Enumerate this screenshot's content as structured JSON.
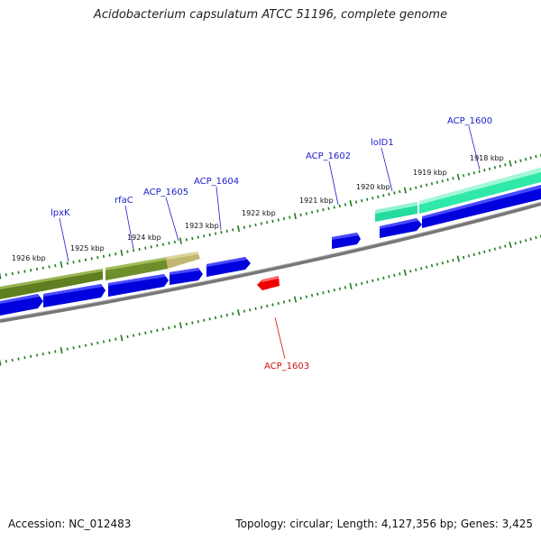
{
  "title": "Acidobacterium capsulatum ATCC 51196, complete genome",
  "footer": {
    "accession": "Accession: NC_012483",
    "stats": "Topology: circular; Length: 4,127,356 bp; Genes: 3,425"
  },
  "colors": {
    "forward_cds": "#0000ee",
    "reverse_cds": "#ee0000",
    "backbone": "#7a7a7a",
    "ticks": "#1a7a1a",
    "feature_olive": "#6b8a2a",
    "feature_khaki": "#c4b870",
    "feature_aqua": "#30e8a8",
    "label_blue": "#1c1ccc",
    "label_red": "#cc1111"
  },
  "scale_labels": [
    "1926 kbp",
    "1925 kbp",
    "1924 kbp",
    "1923 kbp",
    "1922 kbp",
    "1921 kbp",
    "1920 kbp",
    "1919 kbp",
    "1918 kbp"
  ],
  "gene_labels": [
    {
      "text": "lpxK",
      "color": "blue"
    },
    {
      "text": "rfaC",
      "color": "blue"
    },
    {
      "text": "ACP_1605",
      "color": "blue"
    },
    {
      "text": "ACP_1604",
      "color": "blue"
    },
    {
      "text": "ACP_1602",
      "color": "blue"
    },
    {
      "text": "lolD1",
      "color": "blue"
    },
    {
      "text": "ACP_1600",
      "color": "blue"
    },
    {
      "text": "ACP_1603",
      "color": "red"
    }
  ]
}
